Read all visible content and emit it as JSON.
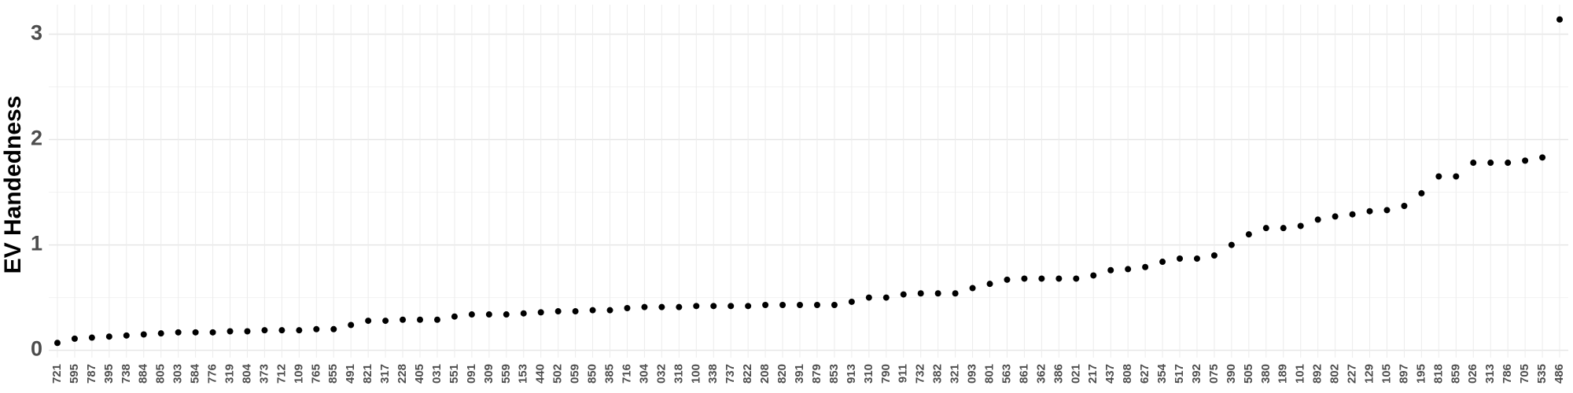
{
  "chart_data": {
    "type": "scatter",
    "y_label": "EV Handedness",
    "categories": [
      "721",
      "595",
      "787",
      "395",
      "738",
      "884",
      "805",
      "303",
      "584",
      "776",
      "319",
      "804",
      "373",
      "712",
      "109",
      "765",
      "855",
      "491",
      "821",
      "317",
      "228",
      "405",
      "031",
      "551",
      "091",
      "309",
      "559",
      "153",
      "440",
      "502",
      "059",
      "850",
      "385",
      "716",
      "304",
      "032",
      "318",
      "100",
      "338",
      "737",
      "822",
      "208",
      "820",
      "391",
      "879",
      "853",
      "913",
      "310",
      "790",
      "911",
      "732",
      "382",
      "321",
      "093",
      "801",
      "563",
      "861",
      "362",
      "386",
      "021",
      "217",
      "437",
      "808",
      "627",
      "354",
      "517",
      "392",
      "075",
      "390",
      "505",
      "380",
      "189",
      "101",
      "892",
      "802",
      "227",
      "129",
      "105",
      "897",
      "195",
      "818",
      "859",
      "026",
      "313",
      "786",
      "705",
      "535",
      "486"
    ],
    "values": [
      0.07,
      0.11,
      0.12,
      0.13,
      0.14,
      0.15,
      0.16,
      0.17,
      0.17,
      0.17,
      0.18,
      0.18,
      0.19,
      0.19,
      0.19,
      0.2,
      0.2,
      0.24,
      0.28,
      0.28,
      0.29,
      0.29,
      0.29,
      0.32,
      0.34,
      0.34,
      0.34,
      0.35,
      0.36,
      0.37,
      0.37,
      0.38,
      0.38,
      0.4,
      0.41,
      0.41,
      0.41,
      0.42,
      0.42,
      0.42,
      0.42,
      0.43,
      0.43,
      0.43,
      0.43,
      0.43,
      0.46,
      0.5,
      0.5,
      0.53,
      0.54,
      0.54,
      0.54,
      0.59,
      0.63,
      0.67,
      0.68,
      0.68,
      0.68,
      0.68,
      0.71,
      0.76,
      0.77,
      0.79,
      0.84,
      0.87,
      0.87,
      0.9,
      1.0,
      1.1,
      1.16,
      1.16,
      1.18,
      1.24,
      1.27,
      1.29,
      1.32,
      1.33,
      1.37,
      1.49,
      1.65,
      1.65,
      1.78,
      1.78,
      1.78,
      1.8,
      1.83,
      3.14
    ],
    "color": "#000000",
    "ylim": [
      -0.07,
      3.28
    ],
    "yticks": [
      0,
      1,
      2,
      3
    ],
    "minor_yticks": [
      0.5,
      1.5,
      2.5
    ],
    "grid": true
  }
}
